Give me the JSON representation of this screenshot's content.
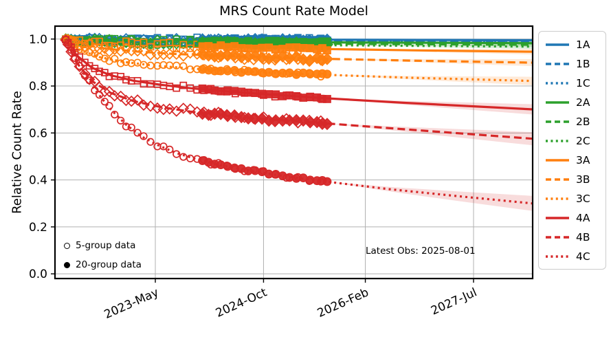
{
  "chart_data": {
    "type": "line",
    "title": "MRS Count Rate Model",
    "ylabel": "Relative Count Rate",
    "xlabel": "",
    "x_unit": "decimal_year",
    "xlim": [
      2022.019,
      2028.274
    ],
    "ylim": [
      -0.02,
      1.055
    ],
    "grid": true,
    "legend_position": "right",
    "x_ticks": [
      {
        "value": 2023.333,
        "label": "2023-May"
      },
      {
        "value": 2024.75,
        "label": "2024-Oct"
      },
      {
        "value": 2026.083,
        "label": "2026-Feb"
      },
      {
        "value": 2027.5,
        "label": "2027-Jul"
      }
    ],
    "y_ticks": [
      0.0,
      0.2,
      0.4,
      0.6,
      0.8,
      1.0
    ],
    "annotation": {
      "text": "Latest Obs: 2025-08-01"
    },
    "latest_obs_decimal_year": 2025.583,
    "marker_legend": [
      {
        "marker": "open-circle",
        "label": "5-group data"
      },
      {
        "marker": "filled-circle",
        "label": "20-group data"
      }
    ],
    "obs_times_5group": [
      2022.16,
      2022.19,
      2022.23,
      2022.28,
      2022.34,
      2022.41,
      2022.47,
      2022.54,
      2022.6,
      2022.67,
      2022.73,
      2022.8,
      2022.88,
      2022.95,
      2023.02,
      2023.1,
      2023.18,
      2023.27,
      2023.36,
      2023.44,
      2023.52,
      2023.61,
      2023.7,
      2023.79,
      2023.88,
      2023.97,
      2024.06,
      2024.16,
      2024.27,
      2024.38,
      2024.5,
      2024.62,
      2024.75,
      2024.9,
      2025.05,
      2025.2,
      2025.35,
      2025.5
    ],
    "obs_times_20group": [
      2023.95,
      2024.03,
      2024.11,
      2024.19,
      2024.28,
      2024.37,
      2024.46,
      2024.55,
      2024.64,
      2024.73,
      2024.82,
      2024.91,
      2025.0,
      2025.09,
      2025.18,
      2025.27,
      2025.36,
      2025.45,
      2025.52,
      2025.583
    ],
    "series": [
      {
        "name": "1A",
        "channel": 1,
        "band": "A",
        "color": "#1f77b4",
        "line_style": "solid",
        "marker": "square",
        "scatter": 0.011,
        "band_halfwidth_end": 0.004,
        "curve": [
          [
            2022.155,
            1.0
          ],
          [
            2022.3,
            0.9995
          ],
          [
            2022.6,
            0.999
          ],
          [
            2023.2,
            0.9985
          ],
          [
            2024.0,
            0.998
          ],
          [
            2025.0,
            0.9975
          ],
          [
            2025.583,
            0.997
          ],
          [
            2026.8,
            0.996
          ],
          [
            2028.274,
            0.995
          ]
        ]
      },
      {
        "name": "1B",
        "channel": 1,
        "band": "B",
        "color": "#1f77b4",
        "line_style": "dashed",
        "marker": "diamond",
        "scatter": 0.011,
        "band_halfwidth_end": 0.005,
        "curve": [
          [
            2022.155,
            1.0
          ],
          [
            2022.3,
            0.998
          ],
          [
            2022.6,
            0.997
          ],
          [
            2023.2,
            0.996
          ],
          [
            2024.0,
            0.995
          ],
          [
            2025.0,
            0.994
          ],
          [
            2025.583,
            0.993
          ],
          [
            2026.8,
            0.991
          ],
          [
            2028.274,
            0.99
          ]
        ]
      },
      {
        "name": "1C",
        "channel": 1,
        "band": "C",
        "color": "#1f77b4",
        "line_style": "dotted",
        "marker": "circle",
        "scatter": 0.011,
        "band_halfwidth_end": 0.006,
        "curve": [
          [
            2022.155,
            1.0
          ],
          [
            2022.3,
            0.9965
          ],
          [
            2022.6,
            0.995
          ],
          [
            2023.2,
            0.993
          ],
          [
            2024.0,
            0.9915
          ],
          [
            2025.0,
            0.99
          ],
          [
            2025.583,
            0.989
          ],
          [
            2026.8,
            0.987
          ],
          [
            2028.274,
            0.985
          ]
        ]
      },
      {
        "name": "2A",
        "channel": 2,
        "band": "A",
        "color": "#2ca02c",
        "line_style": "solid",
        "marker": "square",
        "scatter": 0.01,
        "band_halfwidth_end": 0.008,
        "curve": [
          [
            2022.155,
            1.0
          ],
          [
            2022.3,
            0.996
          ],
          [
            2022.6,
            0.9935
          ],
          [
            2023.2,
            0.991
          ],
          [
            2024.0,
            0.989
          ],
          [
            2025.0,
            0.987
          ],
          [
            2025.583,
            0.986
          ],
          [
            2026.8,
            0.9845
          ],
          [
            2028.274,
            0.9825
          ]
        ]
      },
      {
        "name": "2B",
        "channel": 2,
        "band": "B",
        "color": "#2ca02c",
        "line_style": "dashed",
        "marker": "diamond",
        "scatter": 0.01,
        "band_halfwidth_end": 0.009,
        "curve": [
          [
            2022.155,
            1.0
          ],
          [
            2022.3,
            0.9935
          ],
          [
            2022.6,
            0.99
          ],
          [
            2023.2,
            0.9865
          ],
          [
            2024.0,
            0.984
          ],
          [
            2025.0,
            0.9815
          ],
          [
            2025.583,
            0.98
          ],
          [
            2026.8,
            0.978
          ],
          [
            2028.274,
            0.9755
          ]
        ]
      },
      {
        "name": "2C",
        "channel": 2,
        "band": "C",
        "color": "#2ca02c",
        "line_style": "dotted",
        "marker": "circle",
        "scatter": 0.01,
        "band_halfwidth_end": 0.01,
        "curve": [
          [
            2022.155,
            1.0
          ],
          [
            2022.3,
            0.991
          ],
          [
            2022.6,
            0.9865
          ],
          [
            2023.2,
            0.982
          ],
          [
            2024.0,
            0.9785
          ],
          [
            2025.0,
            0.9755
          ],
          [
            2025.583,
            0.974
          ],
          [
            2026.8,
            0.971
          ],
          [
            2028.274,
            0.968
          ]
        ]
      },
      {
        "name": "3A",
        "channel": 3,
        "band": "A",
        "color": "#ff7f0e",
        "line_style": "solid",
        "marker": "square",
        "scatter": 0.013,
        "band_halfwidth_end": 0.012,
        "curve": [
          [
            2022.155,
            1.0
          ],
          [
            2022.35,
            0.9895
          ],
          [
            2022.7,
            0.982
          ],
          [
            2023.2,
            0.9755
          ],
          [
            2023.8,
            0.97
          ],
          [
            2024.5,
            0.9645
          ],
          [
            2025.0,
            0.961
          ],
          [
            2025.583,
            0.9575
          ],
          [
            2026.8,
            0.9515
          ],
          [
            2028.274,
            0.946
          ]
        ]
      },
      {
        "name": "3B",
        "channel": 3,
        "band": "B",
        "color": "#ff7f0e",
        "line_style": "dashed",
        "marker": "diamond",
        "scatter": 0.014,
        "band_halfwidth_end": 0.015,
        "curve": [
          [
            2022.155,
            1.0
          ],
          [
            2022.35,
            0.977
          ],
          [
            2022.7,
            0.9585
          ],
          [
            2023.1,
            0.9465
          ],
          [
            2023.6,
            0.9365
          ],
          [
            2024.2,
            0.9285
          ],
          [
            2025.0,
            0.9205
          ],
          [
            2025.583,
            0.9155
          ],
          [
            2026.8,
            0.9075
          ],
          [
            2028.274,
            0.8995
          ]
        ]
      },
      {
        "name": "3C",
        "channel": 3,
        "band": "C",
        "color": "#ff7f0e",
        "line_style": "dotted",
        "marker": "circle",
        "scatter": 0.009,
        "band_halfwidth_end": 0.018,
        "curve": [
          [
            2022.155,
            1.0
          ],
          [
            2022.35,
            0.952
          ],
          [
            2022.6,
            0.9235
          ],
          [
            2022.9,
            0.9035
          ],
          [
            2023.3,
            0.8875
          ],
          [
            2023.8,
            0.8745
          ],
          [
            2024.4,
            0.8635
          ],
          [
            2025.0,
            0.8545
          ],
          [
            2025.583,
            0.8475
          ],
          [
            2026.6,
            0.836
          ],
          [
            2028.274,
            0.8215
          ]
        ]
      },
      {
        "name": "4A",
        "channel": 4,
        "band": "A",
        "color": "#d62728",
        "line_style": "solid",
        "marker": "square",
        "scatter": 0.009,
        "band_halfwidth_end": 0.022,
        "curve": [
          [
            2022.155,
            1.0
          ],
          [
            2022.3,
            0.931
          ],
          [
            2022.5,
            0.8785
          ],
          [
            2022.75,
            0.8455
          ],
          [
            2023.05,
            0.8225
          ],
          [
            2023.4,
            0.8055
          ],
          [
            2023.8,
            0.7905
          ],
          [
            2024.3,
            0.7765
          ],
          [
            2024.8,
            0.7645
          ],
          [
            2025.583,
            0.7475
          ],
          [
            2026.6,
            0.7285
          ],
          [
            2028.274,
            0.7005
          ]
        ]
      },
      {
        "name": "4B",
        "channel": 4,
        "band": "B",
        "color": "#d62728",
        "line_style": "dashed",
        "marker": "diamond",
        "scatter": 0.011,
        "band_halfwidth_end": 0.028,
        "curve": [
          [
            2022.155,
            1.0
          ],
          [
            2022.3,
            0.9005
          ],
          [
            2022.5,
            0.8215
          ],
          [
            2022.75,
            0.7705
          ],
          [
            2023.05,
            0.7355
          ],
          [
            2023.4,
            0.7105
          ],
          [
            2023.8,
            0.6905
          ],
          [
            2024.3,
            0.6725
          ],
          [
            2024.8,
            0.6585
          ],
          [
            2025.583,
            0.6405
          ],
          [
            2026.6,
            0.6155
          ],
          [
            2028.274,
            0.5755
          ]
        ]
      },
      {
        "name": "4C",
        "channel": 4,
        "band": "C",
        "color": "#d62728",
        "line_style": "dotted",
        "marker": "circle",
        "scatter": 0.008,
        "band_halfwidth_end": 0.032,
        "curve": [
          [
            2022.155,
            1.0
          ],
          [
            2022.35,
            0.8755
          ],
          [
            2022.55,
            0.7805
          ],
          [
            2022.75,
            0.7005
          ],
          [
            2022.95,
            0.6355
          ],
          [
            2023.15,
            0.5855
          ],
          [
            2023.35,
            0.5505
          ],
          [
            2023.6,
            0.5155
          ],
          [
            2023.85,
            0.4905
          ],
          [
            2024.15,
            0.4655
          ],
          [
            2024.5,
            0.4435
          ],
          [
            2024.85,
            0.4245
          ],
          [
            2025.2,
            0.4085
          ],
          [
            2025.583,
            0.3925
          ],
          [
            2026.4,
            0.3605
          ],
          [
            2027.3,
            0.3305
          ],
          [
            2028.274,
            0.3
          ]
        ]
      }
    ]
  }
}
